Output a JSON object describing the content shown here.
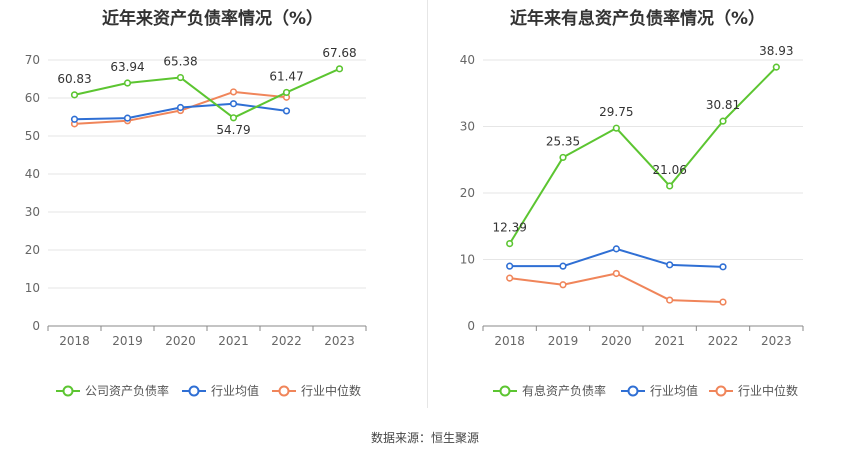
{
  "chart_data": [
    {
      "type": "line",
      "title": "近年来资产负债率情况（%）",
      "categories": [
        "2018",
        "2019",
        "2020",
        "2021",
        "2022",
        "2023"
      ],
      "ylim": [
        0,
        70
      ],
      "yticks": [
        0,
        10,
        20,
        30,
        40,
        50,
        60,
        70
      ],
      "grid": true,
      "legend_position": "bottom",
      "series": [
        {
          "name": "公司资产负债率",
          "color": "#5cc531",
          "values": [
            60.83,
            63.94,
            65.38,
            54.79,
            61.47,
            67.68
          ],
          "labels": true
        },
        {
          "name": "行业均值",
          "color": "#2f6fd4",
          "values": [
            54.4,
            54.7,
            57.5,
            58.5,
            56.6,
            null
          ],
          "labels": false
        },
        {
          "name": "行业中位数",
          "color": "#f0855a",
          "values": [
            53.2,
            54.0,
            56.7,
            61.6,
            60.2,
            null
          ],
          "labels": false
        }
      ]
    },
    {
      "type": "line",
      "title": "近年来有息资产负债率情况（%）",
      "categories": [
        "2018",
        "2019",
        "2020",
        "2021",
        "2022",
        "2023"
      ],
      "ylim": [
        0,
        40
      ],
      "yticks": [
        0,
        10,
        20,
        30,
        40
      ],
      "grid": true,
      "legend_position": "bottom",
      "series": [
        {
          "name": "有息资产负债率",
          "color": "#5cc531",
          "values": [
            12.39,
            25.35,
            29.75,
            21.06,
            30.81,
            38.93
          ],
          "labels": true
        },
        {
          "name": "行业均值",
          "color": "#2f6fd4",
          "values": [
            9.0,
            9.0,
            11.6,
            9.2,
            8.9,
            null
          ],
          "labels": false
        },
        {
          "name": "行业中位数",
          "color": "#f0855a",
          "values": [
            7.2,
            6.2,
            7.9,
            3.9,
            3.6,
            null
          ],
          "labels": false
        }
      ]
    }
  ],
  "footer": {
    "source": "数据来源：恒生聚源"
  }
}
